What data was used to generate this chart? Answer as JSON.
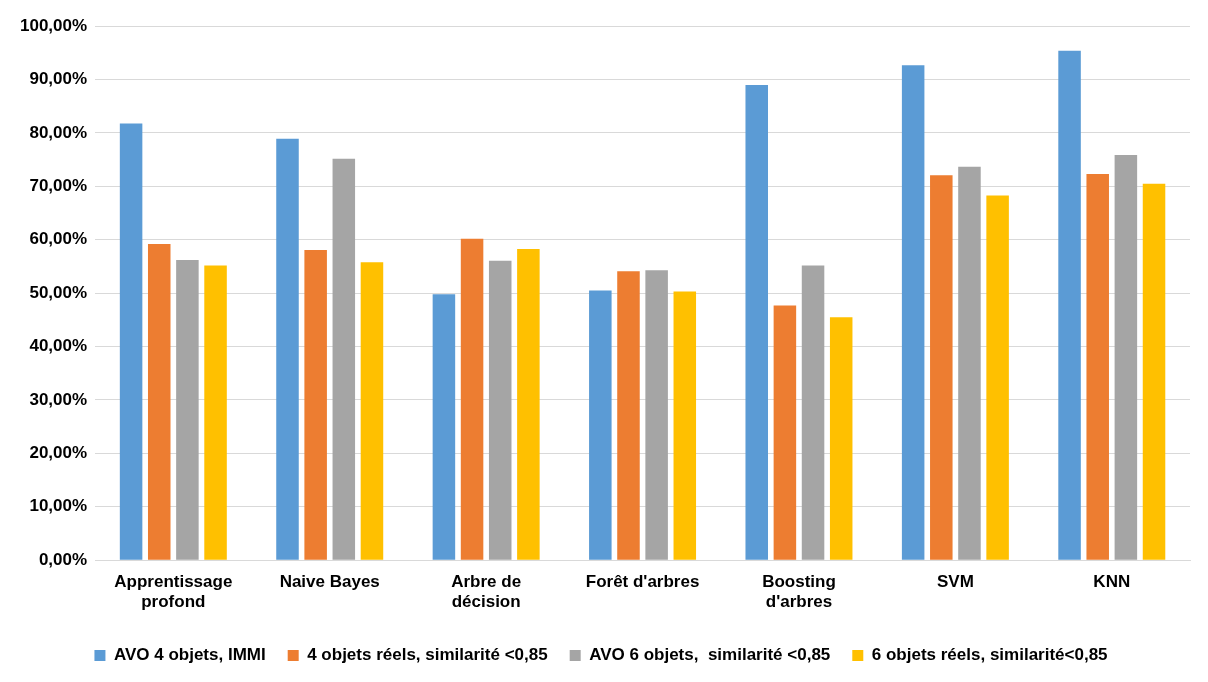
{
  "chart_data": {
    "type": "bar",
    "categories": [
      "Apprentissage profond",
      "Naive Bayes",
      "Arbre de décision",
      "Forêt d'arbres",
      "Boosting d'arbres",
      "SVM",
      "KNN"
    ],
    "series": [
      {
        "name": "AVO 4 objets, IMMI",
        "color": "#5b9bd5",
        "values": [
          81.8,
          78.9,
          49.8,
          50.5,
          89.0,
          92.7,
          95.4
        ]
      },
      {
        "name": "4 objets réels, similarité <0,85",
        "color": "#ed7d31",
        "values": [
          59.2,
          58.1,
          60.2,
          54.1,
          47.7,
          72.1,
          72.3
        ]
      },
      {
        "name": "AVO 6 objets,  similarité <0,85",
        "color": "#a5a5a5",
        "values": [
          56.2,
          75.2,
          56.1,
          54.3,
          55.2,
          73.7,
          75.9
        ]
      },
      {
        "name": "6 objets réels, similarité<0,85",
        "color": "#ffc000",
        "values": [
          55.2,
          55.8,
          58.3,
          50.3,
          45.5,
          68.3,
          70.5
        ]
      }
    ],
    "ylim": [
      0,
      100
    ],
    "yticks": [
      {
        "value": 0,
        "label": "0,00%"
      },
      {
        "value": 10,
        "label": "10,00%"
      },
      {
        "value": 20,
        "label": "20,00%"
      },
      {
        "value": 30,
        "label": "30,00%"
      },
      {
        "value": 40,
        "label": "40,00%"
      },
      {
        "value": 50,
        "label": "50,00%"
      },
      {
        "value": 60,
        "label": "60,00%"
      },
      {
        "value": 70,
        "label": "70,00%"
      },
      {
        "value": 80,
        "label": "80,00%"
      },
      {
        "value": 90,
        "label": "90,00%"
      },
      {
        "value": 100,
        "label": "100,00%"
      }
    ],
    "grid": "y",
    "legend": "bottom"
  }
}
